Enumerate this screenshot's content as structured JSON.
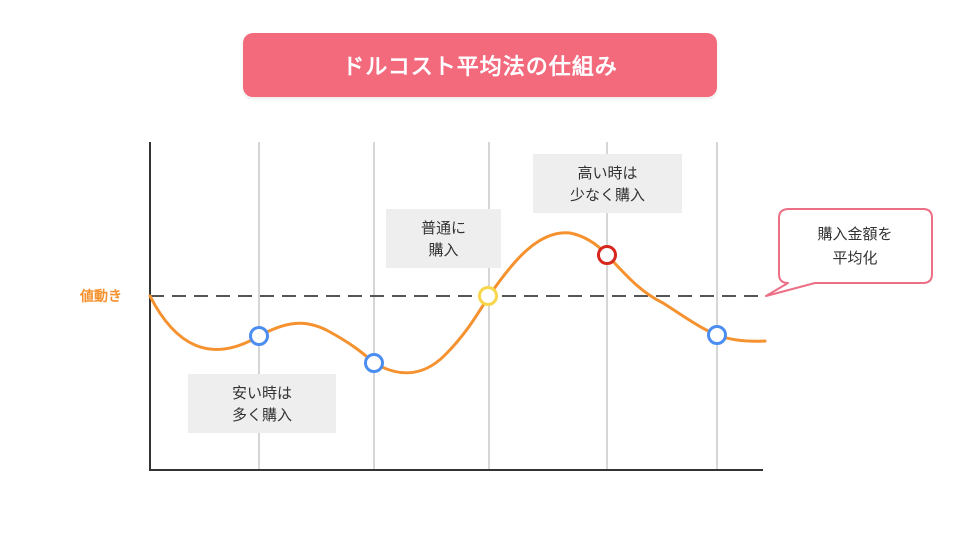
{
  "title": "ドルコスト平均法の仕組み",
  "axis": {
    "y_label": "値動き"
  },
  "annotations": {
    "cheap": {
      "line1": "安い時は",
      "line2": "多く購入"
    },
    "normal": {
      "line1": "普通に",
      "line2": "購入"
    },
    "high": {
      "line1": "高い時は",
      "line2": "少なく購入"
    }
  },
  "callout": {
    "line1": "購入金額を",
    "line2": "平均化"
  },
  "points": [
    {
      "name": "cheap-point-1",
      "level": "low",
      "color": "#4b8df0"
    },
    {
      "name": "cheap-point-2",
      "level": "low",
      "color": "#4b8df0"
    },
    {
      "name": "normal-point",
      "level": "average",
      "color": "#f7d64a"
    },
    {
      "name": "high-point",
      "level": "high",
      "color": "#d7261e"
    },
    {
      "name": "cheap-point-3",
      "level": "low",
      "color": "#4b8df0"
    }
  ],
  "colors": {
    "price_line": "#f5922f",
    "average_line": "#555555",
    "title_bg": "#f46a7d",
    "callout_border": "#ec6f85"
  }
}
